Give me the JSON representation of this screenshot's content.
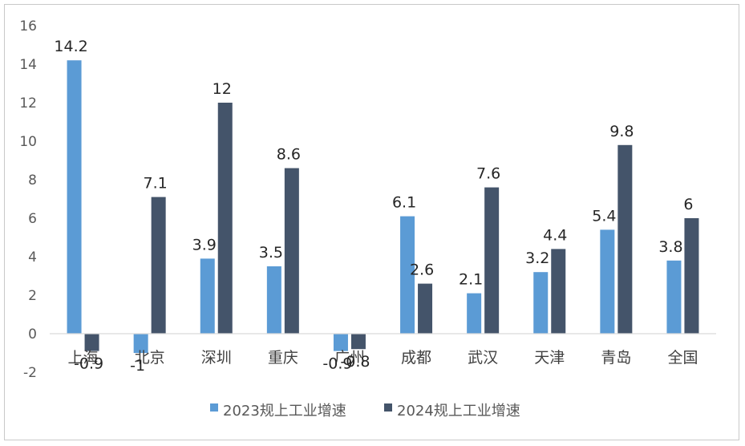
{
  "chart_data": {
    "type": "bar",
    "categories": [
      "上海",
      "北京",
      "深圳",
      "重庆",
      "广州",
      "成都",
      "武汉",
      "天津",
      "青岛",
      "全国"
    ],
    "series": [
      {
        "name": "2023规上工业增速",
        "color": "#5b9bd5",
        "values": [
          14.2,
          -1,
          3.9,
          3.5,
          -0.9,
          6.1,
          2.1,
          3.2,
          5.4,
          3.8
        ]
      },
      {
        "name": "2024规上工业增速",
        "color": "#44546a",
        "values": [
          -0.9,
          7.1,
          12,
          8.6,
          -0.8,
          2.6,
          7.6,
          4.4,
          9.8,
          6
        ]
      }
    ],
    "ylim": [
      -2,
      16
    ],
    "yticks": [
      -2,
      0,
      2,
      4,
      6,
      8,
      10,
      12,
      14,
      16
    ],
    "grid": false,
    "legend_position": "bottom"
  }
}
